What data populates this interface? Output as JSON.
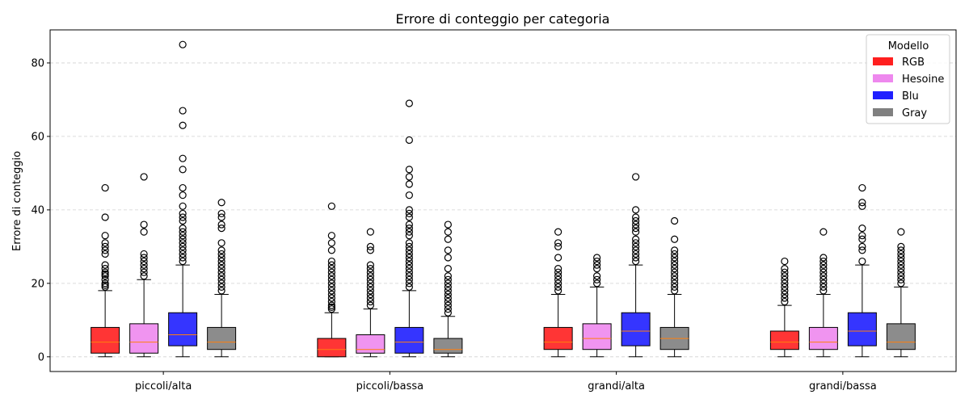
{
  "chart_data": {
    "type": "box",
    "title": "Errore di conteggio per categoria",
    "xlabel": "",
    "ylabel": "Errore di conteggio",
    "ylim": [
      -4,
      89
    ],
    "yticks": [
      0,
      20,
      40,
      60,
      80
    ],
    "grid": "y-dashed",
    "legend_position": "top-right",
    "legend_title": "Modello",
    "categories": [
      "piccoli/alta",
      "piccoli/bassa",
      "grandi/alta",
      "grandi/bassa"
    ],
    "series": [
      {
        "name": "RGB",
        "color": "#ff1f1f",
        "boxes": [
          {
            "whislo": 0,
            "q1": 1,
            "med": 4,
            "q3": 8,
            "whishi": 18,
            "fliers": [
              19,
              19.5,
              20,
              21,
              22,
              22.5,
              23,
              24,
              25,
              28,
              29,
              30,
              31,
              33,
              38,
              46
            ]
          },
          {
            "whislo": 0,
            "q1": 0,
            "med": 2,
            "q3": 5,
            "whishi": 12,
            "fliers": [
              13,
              13.5,
              14,
              15,
              16,
              17,
              18,
              19,
              20,
              21,
              22,
              23,
              24,
              25,
              26,
              29,
              31,
              33,
              41
            ]
          },
          {
            "whislo": 0,
            "q1": 2,
            "med": 4,
            "q3": 8,
            "whishi": 17,
            "fliers": [
              18,
              19,
              20,
              21,
              22,
              23,
              24,
              27,
              30,
              31,
              34
            ]
          },
          {
            "whislo": 0,
            "q1": 2,
            "med": 4,
            "q3": 7,
            "whishi": 14,
            "fliers": [
              15,
              16,
              17,
              18,
              19,
              20,
              21,
              22,
              23,
              24,
              26
            ]
          }
        ]
      },
      {
        "name": "Hesoine",
        "color": "#ee88ee",
        "boxes": [
          {
            "whislo": 0,
            "q1": 1,
            "med": 4,
            "q3": 9,
            "whishi": 21,
            "fliers": [
              22,
              23,
              24,
              25,
              26,
              27,
              28,
              34,
              36,
              49
            ]
          },
          {
            "whislo": 0,
            "q1": 1,
            "med": 2,
            "q3": 6,
            "whishi": 13,
            "fliers": [
              14,
              15,
              16,
              17,
              18,
              19,
              20,
              21,
              22,
              23,
              24,
              25,
              29,
              30,
              34
            ]
          },
          {
            "whislo": 0,
            "q1": 2,
            "med": 5,
            "q3": 9,
            "whishi": 19,
            "fliers": [
              20,
              21,
              22,
              24,
              25,
              26,
              27
            ]
          },
          {
            "whislo": 0,
            "q1": 2,
            "med": 4,
            "q3": 8,
            "whishi": 17,
            "fliers": [
              18,
              19,
              20,
              21,
              22,
              23,
              24,
              25,
              26,
              27,
              34
            ]
          }
        ]
      },
      {
        "name": "Blu",
        "color": "#1f1fff",
        "boxes": [
          {
            "whislo": 0,
            "q1": 3,
            "med": 6,
            "q3": 12,
            "whishi": 25,
            "fliers": [
              26,
              27,
              28,
              29,
              30,
              31,
              32,
              33,
              34,
              35,
              37,
              38,
              39,
              41,
              44,
              46,
              51,
              54,
              63,
              67,
              85
            ]
          },
          {
            "whislo": 0,
            "q1": 1,
            "med": 4,
            "q3": 8,
            "whishi": 18,
            "fliers": [
              19,
              20,
              21,
              22,
              23,
              24,
              25,
              26,
              27,
              28,
              29,
              30,
              31,
              33,
              34,
              35,
              36,
              38,
              39,
              40,
              44,
              47,
              49,
              51,
              59,
              69
            ]
          },
          {
            "whislo": 0,
            "q1": 3,
            "med": 7,
            "q3": 12,
            "whishi": 25,
            "fliers": [
              26,
              27,
              28,
              29,
              30,
              31,
              32,
              34,
              35,
              36,
              37,
              38,
              40,
              49
            ]
          },
          {
            "whislo": 0,
            "q1": 3,
            "med": 7,
            "q3": 12,
            "whishi": 25,
            "fliers": [
              26,
              29,
              30,
              32,
              33,
              35,
              41,
              42,
              46
            ]
          }
        ]
      },
      {
        "name": "Gray",
        "color": "#808080",
        "boxes": [
          {
            "whislo": 0,
            "q1": 2,
            "med": 4,
            "q3": 8,
            "whishi": 17,
            "fliers": [
              18,
              19,
              20,
              21,
              22,
              23,
              24,
              25,
              26,
              27,
              28,
              29,
              31,
              35,
              36,
              38,
              39,
              42
            ]
          },
          {
            "whislo": 0,
            "q1": 1,
            "med": 2,
            "q3": 5,
            "whishi": 11,
            "fliers": [
              12,
              13,
              14,
              15,
              16,
              17,
              18,
              19,
              20,
              21,
              22,
              24,
              27,
              29,
              32,
              34,
              36
            ]
          },
          {
            "whislo": 0,
            "q1": 2,
            "med": 5,
            "q3": 8,
            "whishi": 17,
            "fliers": [
              18,
              19,
              20,
              21,
              22,
              23,
              24,
              25,
              26,
              27,
              28,
              29,
              32,
              37
            ]
          },
          {
            "whislo": 0,
            "q1": 2,
            "med": 4,
            "q3": 9,
            "whishi": 19,
            "fliers": [
              20,
              21,
              22,
              23,
              24,
              25,
              26,
              27,
              28,
              29,
              30,
              34
            ]
          }
        ]
      }
    ]
  }
}
